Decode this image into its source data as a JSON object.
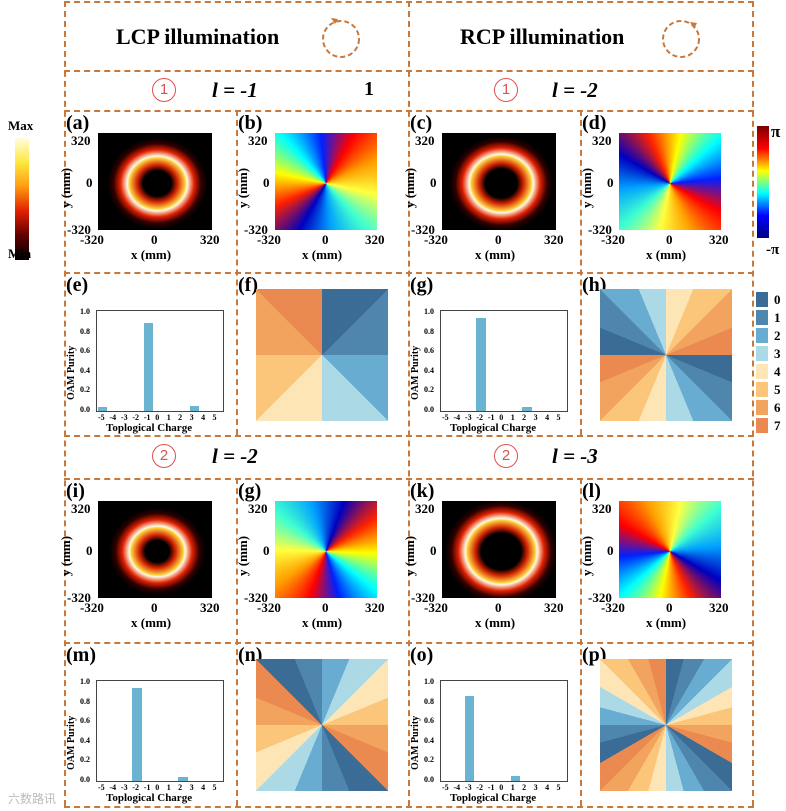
{
  "header": {
    "lcp": "LCP illumination",
    "rcp": "RCP illumination",
    "stray": "1"
  },
  "rows": [
    {
      "left": {
        "num": "1",
        "l": "l = -1"
      },
      "right": {
        "num": "1",
        "l": "l = -2"
      }
    },
    {
      "left": {
        "num": "2",
        "l": "l = -2"
      },
      "right": {
        "num": "2",
        "l": "l = -3"
      }
    }
  ],
  "panel_labels": [
    "(a)",
    "(b)",
    "(c)",
    "(d)",
    "(e)",
    "(f)",
    "(g)",
    "(h)",
    "(i)",
    "(g)",
    "(k)",
    "(l)",
    "(m)",
    "(n)",
    "(o)",
    "(p)"
  ],
  "axes": {
    "xlabel": "x (mm)",
    "ylabel": "y (mm)",
    "ticks": [
      "-320",
      "0",
      "320"
    ]
  },
  "intensity_colorbar": {
    "max": "Max",
    "min": "Min"
  },
  "phase_colorbar": {
    "max": "π",
    "min": "-π"
  },
  "level_legend": {
    "labels": [
      "0",
      "1",
      "2",
      "3",
      "4",
      "5",
      "6",
      "7"
    ],
    "colors": [
      "#3b6c96",
      "#4e86ae",
      "#68acd1",
      "#acd9e6",
      "#fde5b6",
      "#fbc67a",
      "#f2a35e",
      "#ea8a50"
    ]
  },
  "chart_data": [
    {
      "panel": "(e)",
      "type": "bar",
      "xlabel": "Toplogical Charge",
      "ylabel": "OAM Purity",
      "categories": [
        "-5",
        "-4",
        "-3",
        "-2",
        "-1",
        "0",
        "1",
        "2",
        "3",
        "4",
        "5"
      ],
      "values": [
        0.04,
        0,
        0,
        0,
        0.9,
        0,
        0,
        0,
        0.05,
        0,
        0
      ],
      "ylim": [
        0,
        1
      ],
      "yticks": [
        "0.0",
        "0.2",
        "0.4",
        "0.6",
        "0.8",
        "1.0"
      ],
      "color": "#6ab4d2"
    },
    {
      "panel": "(g)",
      "type": "bar",
      "xlabel": "Toplogical Charge",
      "ylabel": "OAM Purity",
      "categories": [
        "-5",
        "-4",
        "-3",
        "-2",
        "-1",
        "0",
        "1",
        "2",
        "3",
        "4",
        "5"
      ],
      "values": [
        0,
        0,
        0,
        0.95,
        0,
        0,
        0,
        0.04,
        0,
        0,
        0
      ],
      "ylim": [
        0,
        1
      ],
      "yticks": [
        "0.0",
        "0.2",
        "0.4",
        "0.6",
        "0.8",
        "1.0"
      ],
      "color": "#6ab4d2"
    },
    {
      "panel": "(m)",
      "type": "bar",
      "xlabel": "Toplogical Charge",
      "ylabel": "OAM Purity",
      "categories": [
        "-5",
        "-4",
        "-3",
        "-2",
        "-1",
        "0",
        "1",
        "2",
        "3",
        "4",
        "5"
      ],
      "values": [
        0,
        0,
        0,
        0.95,
        0,
        0,
        0,
        0.04,
        0,
        0,
        0
      ],
      "ylim": [
        0,
        1
      ],
      "yticks": [
        "0.0",
        "0.2",
        "0.4",
        "0.6",
        "0.8",
        "1.0"
      ],
      "color": "#6ab4d2"
    },
    {
      "panel": "(o)",
      "type": "bar",
      "xlabel": "Toplogical Charge",
      "ylabel": "OAM Purity",
      "categories": [
        "-5",
        "-4",
        "-3",
        "-2",
        "-1",
        "0",
        "1",
        "2",
        "3",
        "4",
        "5"
      ],
      "values": [
        0,
        0,
        0.87,
        0,
        0,
        0,
        0.05,
        0,
        0,
        0,
        0
      ],
      "ylim": [
        0,
        1
      ],
      "yticks": [
        "0.0",
        "0.2",
        "0.4",
        "0.6",
        "0.8",
        "1.0"
      ],
      "color": "#6ab4d2"
    }
  ],
  "watermark": "六数路讯"
}
